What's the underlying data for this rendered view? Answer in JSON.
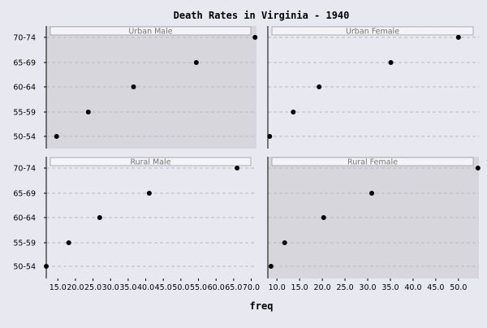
{
  "colors": {
    "page_bg": "#e8e8f0",
    "panel_shaded": "#d6d6dc",
    "panel_plain": "#e8e8f0",
    "strip_bg": "#f4f4f8",
    "grid": "#b8b8c0",
    "point": "#000000"
  },
  "chart_data": {
    "type": "scatter",
    "title": "Death Rates in Virginia - 1940",
    "xlabel": "freq",
    "ylabel": "",
    "grid": true,
    "categories": [
      "50-54",
      "55-59",
      "60-64",
      "65-69",
      "70-74"
    ],
    "panels": [
      {
        "name": "Urban Male",
        "x": [
          15.4,
          24.3,
          37.0,
          54.6,
          71.1
        ],
        "xlim": [
          12.5,
          71.5
        ],
        "xticks": [
          15.0,
          20.0,
          25.0,
          30.0,
          35.0,
          40.0,
          45.0,
          50.0,
          55.0,
          60.0,
          65.0,
          70.0
        ],
        "shaded": true
      },
      {
        "name": "Urban Female",
        "x": [
          8.4,
          13.6,
          19.3,
          35.1,
          50.0
        ],
        "xlim": [
          8.0,
          54.5
        ],
        "xticks": [
          10.0,
          15.0,
          20.0,
          25.0,
          30.0,
          35.0,
          40.0,
          45.0,
          50.0
        ],
        "shaded": false
      },
      {
        "name": "Rural Male",
        "x": [
          11.7,
          18.1,
          26.9,
          41.0,
          66.0
        ],
        "xlim": [
          11.7,
          71.5
        ],
        "xticks": [
          15.0,
          20.0,
          25.0,
          30.0,
          35.0,
          40.0,
          45.0,
          50.0,
          55.0,
          60.0,
          65.0,
          70.0
        ],
        "shaded": false
      },
      {
        "name": "Rural Female",
        "x": [
          8.7,
          11.7,
          20.3,
          30.9,
          54.3
        ],
        "xlim": [
          8.0,
          54.5
        ],
        "xticks": [
          10.0,
          15.0,
          20.0,
          25.0,
          30.0,
          35.0,
          40.0,
          45.0,
          50.0
        ],
        "shaded": true
      }
    ]
  }
}
